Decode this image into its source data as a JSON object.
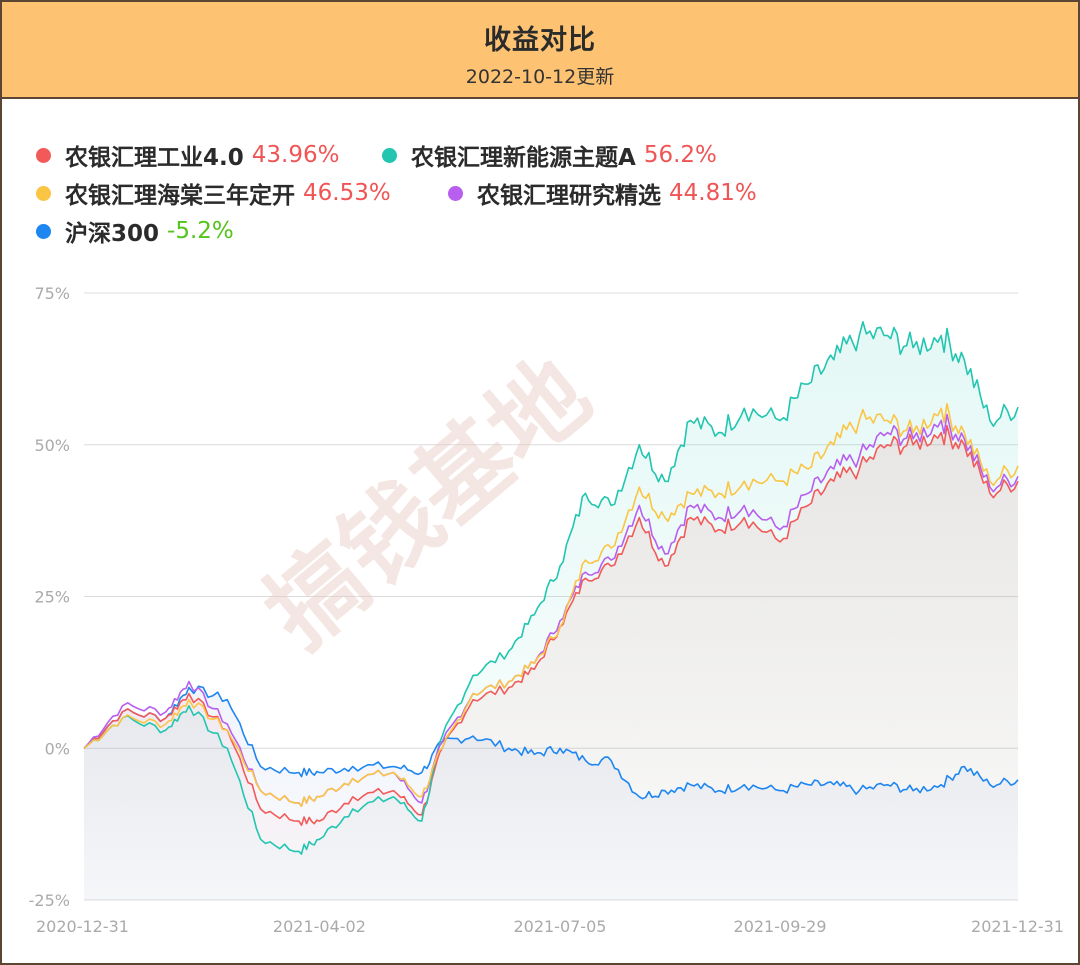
{
  "header": {
    "title": "收益对比",
    "subtitle": "2022-10-12更新"
  },
  "watermark": "搞钱基地",
  "legend": [
    {
      "name": "农银汇理工业4.0",
      "value": "43.96%",
      "color": "#f25a5a",
      "value_color": "#f05454"
    },
    {
      "name": "农银汇理新能源主题A",
      "value": "56.2%",
      "color": "#22c5b0",
      "value_color": "#f05454"
    },
    {
      "name": "农银汇理海棠三年定开",
      "value": "46.53%",
      "color": "#fbc544",
      "value_color": "#f05454"
    },
    {
      "name": "农银汇理研究精选",
      "value": "44.81%",
      "color": "#b85ff0",
      "value_color": "#f05454"
    },
    {
      "name": "沪深300",
      "value": "-5.2%",
      "color": "#1e86f0",
      "value_color": "#52c41a"
    }
  ],
  "chart_data": {
    "type": "line",
    "title": "收益对比",
    "x_tick_labels": [
      "2020-12-31",
      "2021-04-02",
      "2021-07-05",
      "2021-09-29",
      "2021-12-31"
    ],
    "x_range": [
      "2020-12-31",
      "2021-12-31"
    ],
    "y_tick_labels": [
      "75%",
      "50%",
      "25%",
      "0%",
      "-25%"
    ],
    "y_ticks": [
      75,
      50,
      25,
      0,
      -25
    ],
    "ylim": [
      -25,
      75
    ],
    "grid": true,
    "legend_position": "top",
    "series": [
      {
        "name": "农银汇理工业4.0",
        "color": "#f25a5a",
        "area": true,
        "points": [
          [
            "2020-12-31",
            0
          ],
          [
            "2021-01-15",
            6
          ],
          [
            "2021-02-01",
            5
          ],
          [
            "2021-02-10",
            9
          ],
          [
            "2021-02-25",
            3
          ],
          [
            "2021-03-10",
            -10
          ],
          [
            "2021-03-25",
            -12
          ],
          [
            "2021-04-02",
            -12
          ],
          [
            "2021-04-15",
            -8
          ],
          [
            "2021-05-01",
            -7
          ],
          [
            "2021-05-12",
            -11
          ],
          [
            "2021-05-20",
            0
          ],
          [
            "2021-06-01",
            8
          ],
          [
            "2021-06-15",
            10
          ],
          [
            "2021-06-25",
            13
          ],
          [
            "2021-07-05",
            20
          ],
          [
            "2021-07-15",
            28
          ],
          [
            "2021-07-25",
            30
          ],
          [
            "2021-08-05",
            38
          ],
          [
            "2021-08-15",
            30
          ],
          [
            "2021-08-25",
            38
          ],
          [
            "2021-09-05",
            36
          ],
          [
            "2021-09-15",
            38
          ],
          [
            "2021-09-29",
            34
          ],
          [
            "2021-10-10",
            40
          ],
          [
            "2021-10-20",
            44
          ],
          [
            "2021-10-30",
            46
          ],
          [
            "2021-11-10",
            50
          ],
          [
            "2021-11-20",
            50
          ],
          [
            "2021-12-01",
            52
          ],
          [
            "2021-12-10",
            50
          ],
          [
            "2021-12-20",
            42
          ],
          [
            "2021-12-31",
            44
          ]
        ]
      },
      {
        "name": "农银汇理新能源主题A",
        "color": "#22c5b0",
        "area": true,
        "points": [
          [
            "2020-12-31",
            0
          ],
          [
            "2021-01-15",
            5
          ],
          [
            "2021-02-01",
            3
          ],
          [
            "2021-02-10",
            7
          ],
          [
            "2021-02-25",
            0
          ],
          [
            "2021-03-10",
            -15
          ],
          [
            "2021-03-25",
            -17
          ],
          [
            "2021-04-02",
            -15
          ],
          [
            "2021-04-15",
            -10
          ],
          [
            "2021-05-01",
            -8
          ],
          [
            "2021-05-12",
            -12
          ],
          [
            "2021-05-20",
            2
          ],
          [
            "2021-06-01",
            12
          ],
          [
            "2021-06-15",
            16
          ],
          [
            "2021-06-25",
            22
          ],
          [
            "2021-07-05",
            30
          ],
          [
            "2021-07-15",
            42
          ],
          [
            "2021-07-25",
            40
          ],
          [
            "2021-08-05",
            50
          ],
          [
            "2021-08-15",
            44
          ],
          [
            "2021-08-25",
            54
          ],
          [
            "2021-09-05",
            52
          ],
          [
            "2021-09-15",
            56
          ],
          [
            "2021-09-29",
            54
          ],
          [
            "2021-10-10",
            60
          ],
          [
            "2021-10-20",
            64
          ],
          [
            "2021-10-30",
            68
          ],
          [
            "2021-11-10",
            68
          ],
          [
            "2021-11-20",
            66
          ],
          [
            "2021-12-01",
            68
          ],
          [
            "2021-12-10",
            64
          ],
          [
            "2021-12-20",
            54
          ],
          [
            "2021-12-31",
            56.2
          ]
        ]
      },
      {
        "name": "农银汇理海棠三年定开",
        "color": "#fbc544",
        "area": false,
        "points": [
          [
            "2020-12-31",
            0
          ],
          [
            "2021-01-15",
            5
          ],
          [
            "2021-02-01",
            4
          ],
          [
            "2021-02-10",
            8
          ],
          [
            "2021-02-25",
            3
          ],
          [
            "2021-03-10",
            -7
          ],
          [
            "2021-03-25",
            -9
          ],
          [
            "2021-04-02",
            -8
          ],
          [
            "2021-04-15",
            -5
          ],
          [
            "2021-05-01",
            -4
          ],
          [
            "2021-05-12",
            -8
          ],
          [
            "2021-05-20",
            0
          ],
          [
            "2021-06-01",
            9
          ],
          [
            "2021-06-15",
            11
          ],
          [
            "2021-06-25",
            14
          ],
          [
            "2021-07-05",
            20
          ],
          [
            "2021-07-15",
            31
          ],
          [
            "2021-07-25",
            33
          ],
          [
            "2021-08-05",
            43
          ],
          [
            "2021-08-15",
            38
          ],
          [
            "2021-08-25",
            42
          ],
          [
            "2021-09-05",
            42
          ],
          [
            "2021-09-15",
            44
          ],
          [
            "2021-09-29",
            44
          ],
          [
            "2021-10-10",
            46
          ],
          [
            "2021-10-20",
            50
          ],
          [
            "2021-10-30",
            54
          ],
          [
            "2021-11-10",
            54
          ],
          [
            "2021-11-20",
            52
          ],
          [
            "2021-12-01",
            56
          ],
          [
            "2021-12-10",
            52
          ],
          [
            "2021-12-20",
            44
          ],
          [
            "2021-12-31",
            46.53
          ]
        ]
      },
      {
        "name": "农银汇理研究精选",
        "color": "#b85ff0",
        "area": false,
        "points": [
          [
            "2020-12-31",
            0
          ],
          [
            "2021-01-15",
            7
          ],
          [
            "2021-02-01",
            6
          ],
          [
            "2021-02-10",
            11
          ],
          [
            "2021-02-25",
            4
          ],
          [
            "2021-03-10",
            -7
          ],
          [
            "2021-03-25",
            -9
          ],
          [
            "2021-04-02",
            -8
          ],
          [
            "2021-04-15",
            -5
          ],
          [
            "2021-05-01",
            -4
          ],
          [
            "2021-05-12",
            -9
          ],
          [
            "2021-05-20",
            1
          ],
          [
            "2021-06-01",
            9
          ],
          [
            "2021-06-15",
            11
          ],
          [
            "2021-06-25",
            14
          ],
          [
            "2021-07-05",
            21
          ],
          [
            "2021-07-15",
            29
          ],
          [
            "2021-07-25",
            31
          ],
          [
            "2021-08-05",
            40
          ],
          [
            "2021-08-15",
            32
          ],
          [
            "2021-08-25",
            40
          ],
          [
            "2021-09-05",
            38
          ],
          [
            "2021-09-15",
            40
          ],
          [
            "2021-09-29",
            36
          ],
          [
            "2021-10-10",
            42
          ],
          [
            "2021-10-20",
            46
          ],
          [
            "2021-10-30",
            48
          ],
          [
            "2021-11-10",
            52
          ],
          [
            "2021-11-20",
            51
          ],
          [
            "2021-12-01",
            54
          ],
          [
            "2021-12-10",
            51
          ],
          [
            "2021-12-20",
            43
          ],
          [
            "2021-12-31",
            44.81
          ]
        ]
      },
      {
        "name": "沪深300",
        "color": "#1e86f0",
        "area": true,
        "points": [
          [
            "2020-12-31",
            0
          ],
          [
            "2021-01-15",
            6
          ],
          [
            "2021-02-01",
            5
          ],
          [
            "2021-02-10",
            10
          ],
          [
            "2021-02-25",
            8
          ],
          [
            "2021-03-10",
            -3
          ],
          [
            "2021-03-25",
            -4
          ],
          [
            "2021-04-02",
            -4
          ],
          [
            "2021-04-15",
            -3
          ],
          [
            "2021-05-01",
            -3
          ],
          [
            "2021-05-12",
            -4
          ],
          [
            "2021-05-20",
            1
          ],
          [
            "2021-06-01",
            2
          ],
          [
            "2021-06-15",
            0
          ],
          [
            "2021-06-25",
            -1
          ],
          [
            "2021-07-05",
            0
          ],
          [
            "2021-07-15",
            -2
          ],
          [
            "2021-07-25",
            -2
          ],
          [
            "2021-08-05",
            -8
          ],
          [
            "2021-08-15",
            -7
          ],
          [
            "2021-08-25",
            -6
          ],
          [
            "2021-09-05",
            -7
          ],
          [
            "2021-09-15",
            -6
          ],
          [
            "2021-09-29",
            -7
          ],
          [
            "2021-10-10",
            -6
          ],
          [
            "2021-10-20",
            -6
          ],
          [
            "2021-10-30",
            -7
          ],
          [
            "2021-11-10",
            -6
          ],
          [
            "2021-11-20",
            -7
          ],
          [
            "2021-12-01",
            -6
          ],
          [
            "2021-12-10",
            -3
          ],
          [
            "2021-12-20",
            -6
          ],
          [
            "2021-12-31",
            -5.2
          ]
        ]
      }
    ]
  }
}
